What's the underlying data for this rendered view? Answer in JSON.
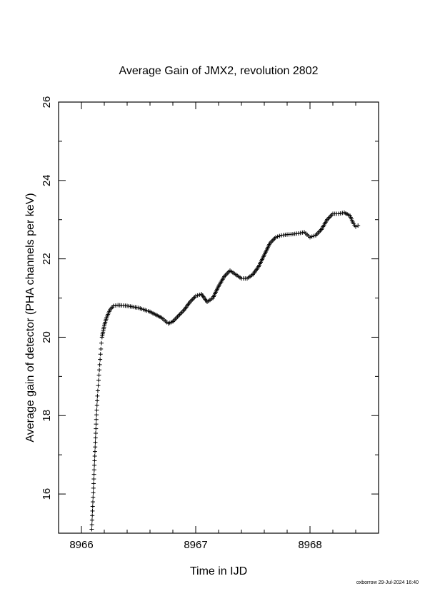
{
  "chart_data": {
    "type": "scatter",
    "title": "Average Gain of JMX2, revolution 2802",
    "xlabel": "Time in IJD",
    "ylabel": "Average gain of detector (PHA channels per keV)",
    "xlim": [
      8965.8,
      8968.6
    ],
    "ylim": [
      15.0,
      26.0
    ],
    "x_ticks": [
      8966,
      8967,
      8968
    ],
    "y_ticks": [
      16,
      18,
      20,
      22,
      24,
      26
    ],
    "grid": false,
    "legend": "none",
    "marker": "plus",
    "color": "#000000",
    "series": [
      {
        "x": [
          8966.09,
          8966.1,
          8966.11,
          8966.12,
          8966.13,
          8966.14,
          8966.15,
          8966.16,
          8966.17,
          8966.18,
          8966.2,
          8966.22,
          8966.25,
          8966.28,
          8966.32,
          8966.4,
          8966.5,
          8966.6,
          8966.7,
          8966.76,
          8966.8,
          8966.85,
          8966.9,
          8966.95,
          8967.0,
          8967.05,
          8967.1,
          8967.15,
          8967.2,
          8967.25,
          8967.3,
          8967.35,
          8967.4,
          8967.45,
          8967.5,
          8967.55,
          8967.6,
          8967.65,
          8967.7,
          8967.75,
          8967.8,
          8967.85,
          8967.9,
          8967.95,
          8968.0,
          8968.05,
          8968.1,
          8968.15,
          8968.2,
          8968.25,
          8968.3,
          8968.35,
          8968.38,
          8968.4,
          8968.42
        ],
        "y": [
          15.1,
          15.8,
          16.5,
          17.2,
          17.9,
          18.5,
          18.9,
          19.3,
          19.7,
          20.0,
          20.3,
          20.5,
          20.7,
          20.8,
          20.82,
          20.8,
          20.75,
          20.65,
          20.5,
          20.35,
          20.4,
          20.55,
          20.7,
          20.9,
          21.05,
          21.1,
          20.9,
          21.0,
          21.3,
          21.55,
          21.7,
          21.6,
          21.5,
          21.5,
          21.6,
          21.8,
          22.1,
          22.4,
          22.55,
          22.6,
          22.62,
          22.63,
          22.65,
          22.68,
          22.55,
          22.6,
          22.75,
          23.0,
          23.15,
          23.15,
          23.18,
          23.1,
          22.9,
          22.82,
          22.85
        ]
      }
    ],
    "footer": "oxborrow 29-Jul-2024 16:40"
  }
}
